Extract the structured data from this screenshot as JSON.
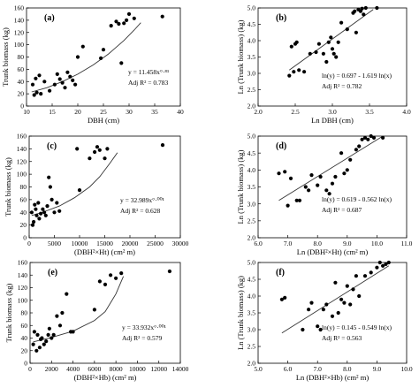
{
  "chart_data": [
    {
      "type": "scatter",
      "panel_label": "(a)",
      "xlabel": "DBH (cm)",
      "ylabel": "Trunk biomass (kg)",
      "xlim": [
        10,
        40
      ],
      "ylim": [
        0,
        160
      ],
      "xticks": [
        10,
        15,
        20,
        25,
        30,
        35,
        40
      ],
      "yticks": [
        0,
        20,
        40,
        60,
        80,
        100,
        120,
        140,
        160
      ],
      "equation": "y = 11.458x°·⁸¹",
      "r2": "Adj R² = 0.783",
      "points": [
        [
          11.2,
          35
        ],
        [
          11.5,
          18
        ],
        [
          11.8,
          45
        ],
        [
          12.0,
          22
        ],
        [
          12.5,
          50
        ],
        [
          12.8,
          20
        ],
        [
          13.5,
          40
        ],
        [
          14.5,
          25
        ],
        [
          15.5,
          35
        ],
        [
          16.0,
          52
        ],
        [
          16.5,
          44
        ],
        [
          17.0,
          38
        ],
        [
          17.5,
          30
        ],
        [
          18.0,
          55
        ],
        [
          18.5,
          48
        ],
        [
          19.0,
          42
        ],
        [
          19.5,
          35
        ],
        [
          20.0,
          80
        ],
        [
          21.0,
          97
        ],
        [
          24.5,
          78
        ],
        [
          25.0,
          92
        ],
        [
          26.5,
          131
        ],
        [
          27.5,
          138
        ],
        [
          28.0,
          134
        ],
        [
          28.5,
          70
        ],
        [
          29.0,
          135
        ],
        [
          29.5,
          140
        ],
        [
          30.0,
          150
        ],
        [
          31.0,
          143
        ],
        [
          36.5,
          146
        ]
      ],
      "fit": [
        [
          11,
          23
        ],
        [
          14,
          30
        ],
        [
          17,
          40
        ],
        [
          20,
          52
        ],
        [
          23,
          67
        ],
        [
          26,
          85
        ],
        [
          29,
          107
        ],
        [
          31,
          124
        ],
        [
          32.3,
          136
        ]
      ]
    },
    {
      "type": "scatter",
      "panel_label": "(b)",
      "xlabel": "Ln DBH (cm)",
      "ylabel": "Ln (Trunk biomass) (kg)",
      "xlim": [
        2.0,
        4.0
      ],
      "ylim": [
        2.0,
        5.0
      ],
      "xticks": [
        2.0,
        2.5,
        3.0,
        3.5,
        4.0
      ],
      "yticks": [
        2.0,
        2.5,
        3.0,
        3.5,
        4.0,
        4.5,
        5.0
      ],
      "equation": "ln(y) = 0.697 - 1.619 ln(x)",
      "r2": "Adj R² = 0.782",
      "points": [
        [
          2.42,
          2.93
        ],
        [
          2.45,
          3.82
        ],
        [
          2.48,
          3.05
        ],
        [
          2.5,
          3.9
        ],
        [
          2.52,
          3.95
        ],
        [
          2.55,
          3.1
        ],
        [
          2.62,
          3.05
        ],
        [
          2.7,
          3.6
        ],
        [
          2.78,
          3.65
        ],
        [
          2.82,
          3.9
        ],
        [
          2.88,
          3.6
        ],
        [
          2.92,
          3.35
        ],
        [
          2.95,
          3.95
        ],
        [
          2.98,
          4.1
        ],
        [
          3.0,
          3.75
        ],
        [
          3.02,
          3.6
        ],
        [
          3.05,
          3.5
        ],
        [
          3.08,
          3.95
        ],
        [
          3.12,
          4.55
        ],
        [
          3.2,
          4.35
        ],
        [
          3.28,
          4.85
        ],
        [
          3.3,
          4.9
        ],
        [
          3.32,
          4.25
        ],
        [
          3.35,
          4.95
        ],
        [
          3.38,
          4.9
        ],
        [
          3.4,
          4.98
        ],
        [
          3.42,
          4.8
        ],
        [
          3.45,
          5.0
        ],
        [
          3.6,
          5.0
        ]
      ],
      "fit": [
        [
          2.42,
          3.1
        ],
        [
          3.55,
          4.95
        ]
      ]
    },
    {
      "type": "scatter",
      "panel_label": "(c)",
      "xlabel": "(DBH²×Ht) (cm² m)",
      "ylabel": "Trunk biomass (kg)",
      "xlim": [
        0,
        30000
      ],
      "ylim": [
        0,
        160
      ],
      "xticks": [
        0,
        5000,
        10000,
        15000,
        20000,
        25000,
        30000
      ],
      "yticks": [
        0,
        20,
        40,
        60,
        80,
        100,
        120,
        140,
        160
      ],
      "equation": "y = 32.989x°·⁰⁰¹",
      "r2": "Adj R² = 0.628",
      "points": [
        [
          500,
          40
        ],
        [
          700,
          20
        ],
        [
          900,
          25
        ],
        [
          1100,
          52
        ],
        [
          1300,
          45
        ],
        [
          1500,
          35
        ],
        [
          1800,
          55
        ],
        [
          2000,
          30
        ],
        [
          2300,
          38
        ],
        [
          2700,
          45
        ],
        [
          3000,
          40
        ],
        [
          3300,
          35
        ],
        [
          3600,
          50
        ],
        [
          3900,
          95
        ],
        [
          4200,
          80
        ],
        [
          4500,
          60
        ],
        [
          5000,
          40
        ],
        [
          5500,
          55
        ],
        [
          6000,
          42
        ],
        [
          9500,
          140
        ],
        [
          10000,
          75
        ],
        [
          12000,
          125
        ],
        [
          13000,
          135
        ],
        [
          13500,
          143
        ],
        [
          14000,
          138
        ],
        [
          15000,
          125
        ],
        [
          15500,
          140
        ],
        [
          26500,
          146
        ]
      ],
      "fit": [
        [
          500,
          35
        ],
        [
          3000,
          41
        ],
        [
          6000,
          50
        ],
        [
          9000,
          63
        ],
        [
          12000,
          80
        ],
        [
          14000,
          96
        ],
        [
          16000,
          117
        ],
        [
          17500,
          134
        ]
      ]
    },
    {
      "type": "scatter",
      "panel_label": "(d)",
      "xlabel": "Ln (DBH²×Ht) (cm² m)",
      "ylabel": "Ln (Trunk biomass) (kg)",
      "xlim": [
        6.0,
        11.0
      ],
      "ylim": [
        2.0,
        5.0
      ],
      "xticks": [
        6.0,
        7.0,
        8.0,
        9.0,
        10.0,
        11.0
      ],
      "yticks": [
        2.0,
        2.5,
        3.0,
        3.5,
        4.0,
        4.5,
        5.0
      ],
      "equation": "ln(y) = 0.619 - 0.562 ln(x)",
      "r2": "Adj R² = 0.687",
      "points": [
        [
          6.7,
          3.9
        ],
        [
          6.9,
          3.95
        ],
        [
          7.0,
          2.95
        ],
        [
          7.1,
          3.75
        ],
        [
          7.3,
          3.1
        ],
        [
          7.4,
          3.1
        ],
        [
          7.6,
          3.5
        ],
        [
          7.7,
          3.4
        ],
        [
          7.8,
          3.85
        ],
        [
          8.0,
          3.55
        ],
        [
          8.1,
          3.8
        ],
        [
          8.3,
          3.4
        ],
        [
          8.4,
          3.3
        ],
        [
          8.5,
          3.6
        ],
        [
          8.6,
          3.8
        ],
        [
          8.8,
          4.5
        ],
        [
          8.9,
          3.9
        ],
        [
          9.0,
          4.0
        ],
        [
          9.1,
          4.3
        ],
        [
          9.3,
          4.6
        ],
        [
          9.4,
          4.7
        ],
        [
          9.5,
          4.9
        ],
        [
          9.6,
          4.95
        ],
        [
          9.7,
          4.9
        ],
        [
          9.8,
          5.0
        ],
        [
          9.9,
          4.95
        ],
        [
          10.2,
          4.95
        ]
      ],
      "fit": [
        [
          6.7,
          3.1
        ],
        [
          10.2,
          5.0
        ]
      ]
    },
    {
      "type": "scatter",
      "panel_label": "(e)",
      "xlabel": "(DBH²×Hb) (cm² m)",
      "ylabel": "Trunk biomass (kg)",
      "xlim": [
        0,
        14000
      ],
      "ylim": [
        0,
        160
      ],
      "xticks": [
        0,
        2000,
        4000,
        6000,
        8000,
        10000,
        12000,
        14000
      ],
      "yticks": [
        0,
        20,
        40,
        60,
        80,
        100,
        120,
        140,
        160
      ],
      "equation": "y = 33.932x°·⁰⁰¹",
      "r2": "Adj R² = 0.579",
      "points": [
        [
          300,
          30
        ],
        [
          400,
          50
        ],
        [
          600,
          20
        ],
        [
          700,
          45
        ],
        [
          900,
          25
        ],
        [
          1000,
          38
        ],
        [
          1100,
          40
        ],
        [
          1300,
          30
        ],
        [
          1500,
          35
        ],
        [
          1700,
          45
        ],
        [
          1800,
          55
        ],
        [
          2000,
          40
        ],
        [
          2200,
          45
        ],
        [
          2500,
          75
        ],
        [
          2800,
          60
        ],
        [
          3000,
          80
        ],
        [
          3400,
          110
        ],
        [
          3800,
          50
        ],
        [
          4000,
          50
        ],
        [
          6000,
          85
        ],
        [
          6500,
          130
        ],
        [
          7000,
          125
        ],
        [
          7500,
          140
        ],
        [
          8000,
          135
        ],
        [
          8500,
          143
        ],
        [
          13000,
          146
        ]
      ],
      "fit": [
        [
          300,
          34
        ],
        [
          2000,
          41
        ],
        [
          4000,
          51
        ],
        [
          6000,
          68
        ],
        [
          7000,
          82
        ],
        [
          8000,
          110
        ],
        [
          8700,
          138
        ]
      ]
    },
    {
      "type": "scatter",
      "panel_label": "(f)",
      "xlabel": "Ln (DBH²×Hb) (cm² m)",
      "ylabel": "Ln (Trunk biomass) (kg)",
      "xlim": [
        5.0,
        10.0
      ],
      "ylim": [
        2.0,
        5.0
      ],
      "xticks": [
        5.0,
        6.0,
        7.0,
        8.0,
        9.0,
        10.0
      ],
      "yticks": [
        2.0,
        2.5,
        3.0,
        3.5,
        4.0,
        4.5,
        5.0
      ],
      "equation": "ln(y) = 0.145 - 0.549 ln(x)",
      "r2": "Adj R² = 0.563",
      "points": [
        [
          5.8,
          3.9
        ],
        [
          5.9,
          3.95
        ],
        [
          6.5,
          3.0
        ],
        [
          6.7,
          3.6
        ],
        [
          6.8,
          3.8
        ],
        [
          7.0,
          3.1
        ],
        [
          7.1,
          3.0
        ],
        [
          7.2,
          3.6
        ],
        [
          7.3,
          3.75
        ],
        [
          7.5,
          3.4
        ],
        [
          7.6,
          4.4
        ],
        [
          7.7,
          3.5
        ],
        [
          7.8,
          3.9
        ],
        [
          7.9,
          3.8
        ],
        [
          8.0,
          4.3
        ],
        [
          8.1,
          3.75
        ],
        [
          8.2,
          4.2
        ],
        [
          8.3,
          4.6
        ],
        [
          8.4,
          4.0
        ],
        [
          8.6,
          4.6
        ],
        [
          8.8,
          4.7
        ],
        [
          9.0,
          4.85
        ],
        [
          9.1,
          5.0
        ],
        [
          9.2,
          4.9
        ],
        [
          9.3,
          4.95
        ],
        [
          9.4,
          5.0
        ]
      ],
      "fit": [
        [
          5.8,
          2.9
        ],
        [
          9.4,
          4.9
        ]
      ]
    }
  ]
}
